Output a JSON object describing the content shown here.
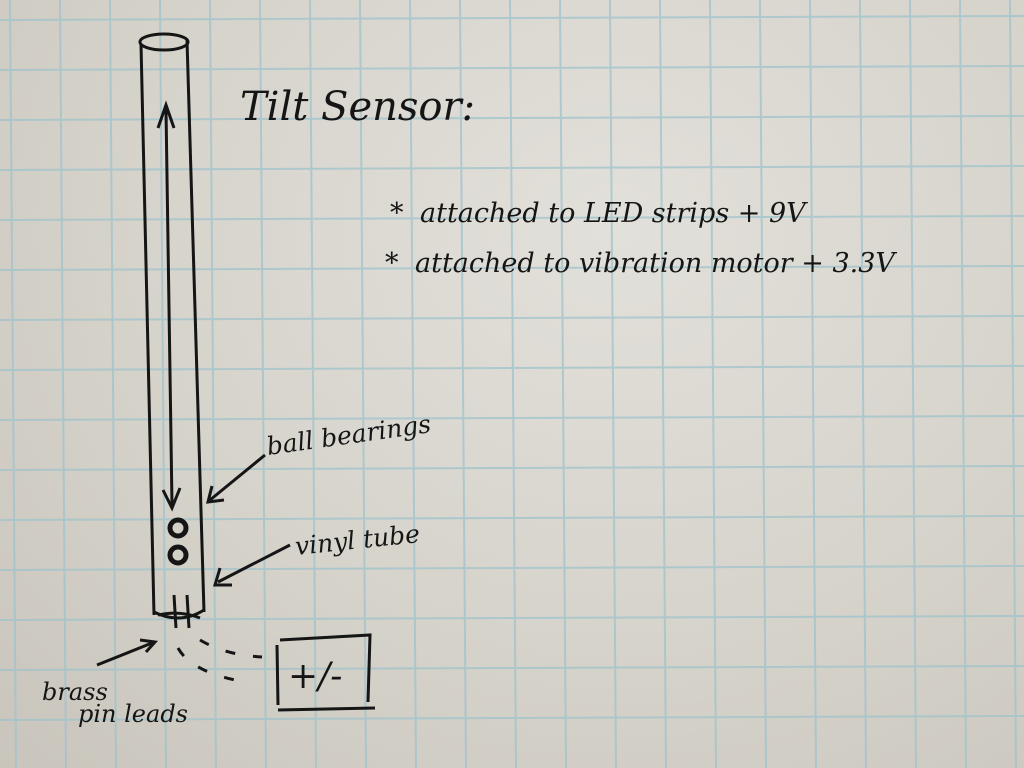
{
  "title": "Tilt Sensor:",
  "notes": [
    "attached to LED strips + 9V",
    "attached to vibration motor + 3.3V"
  ],
  "note_bullet": "*",
  "labels": {
    "ball_bearings": "ball bearings",
    "vinyl_tube": "vinyl tube",
    "brass_pin_leads_line1": "brass",
    "brass_pin_leads_line2": "pin leads",
    "power": "+/-"
  },
  "colors": {
    "paper": "#d9d6cf",
    "grid": "#9fc3cc",
    "ink": "#151515"
  }
}
